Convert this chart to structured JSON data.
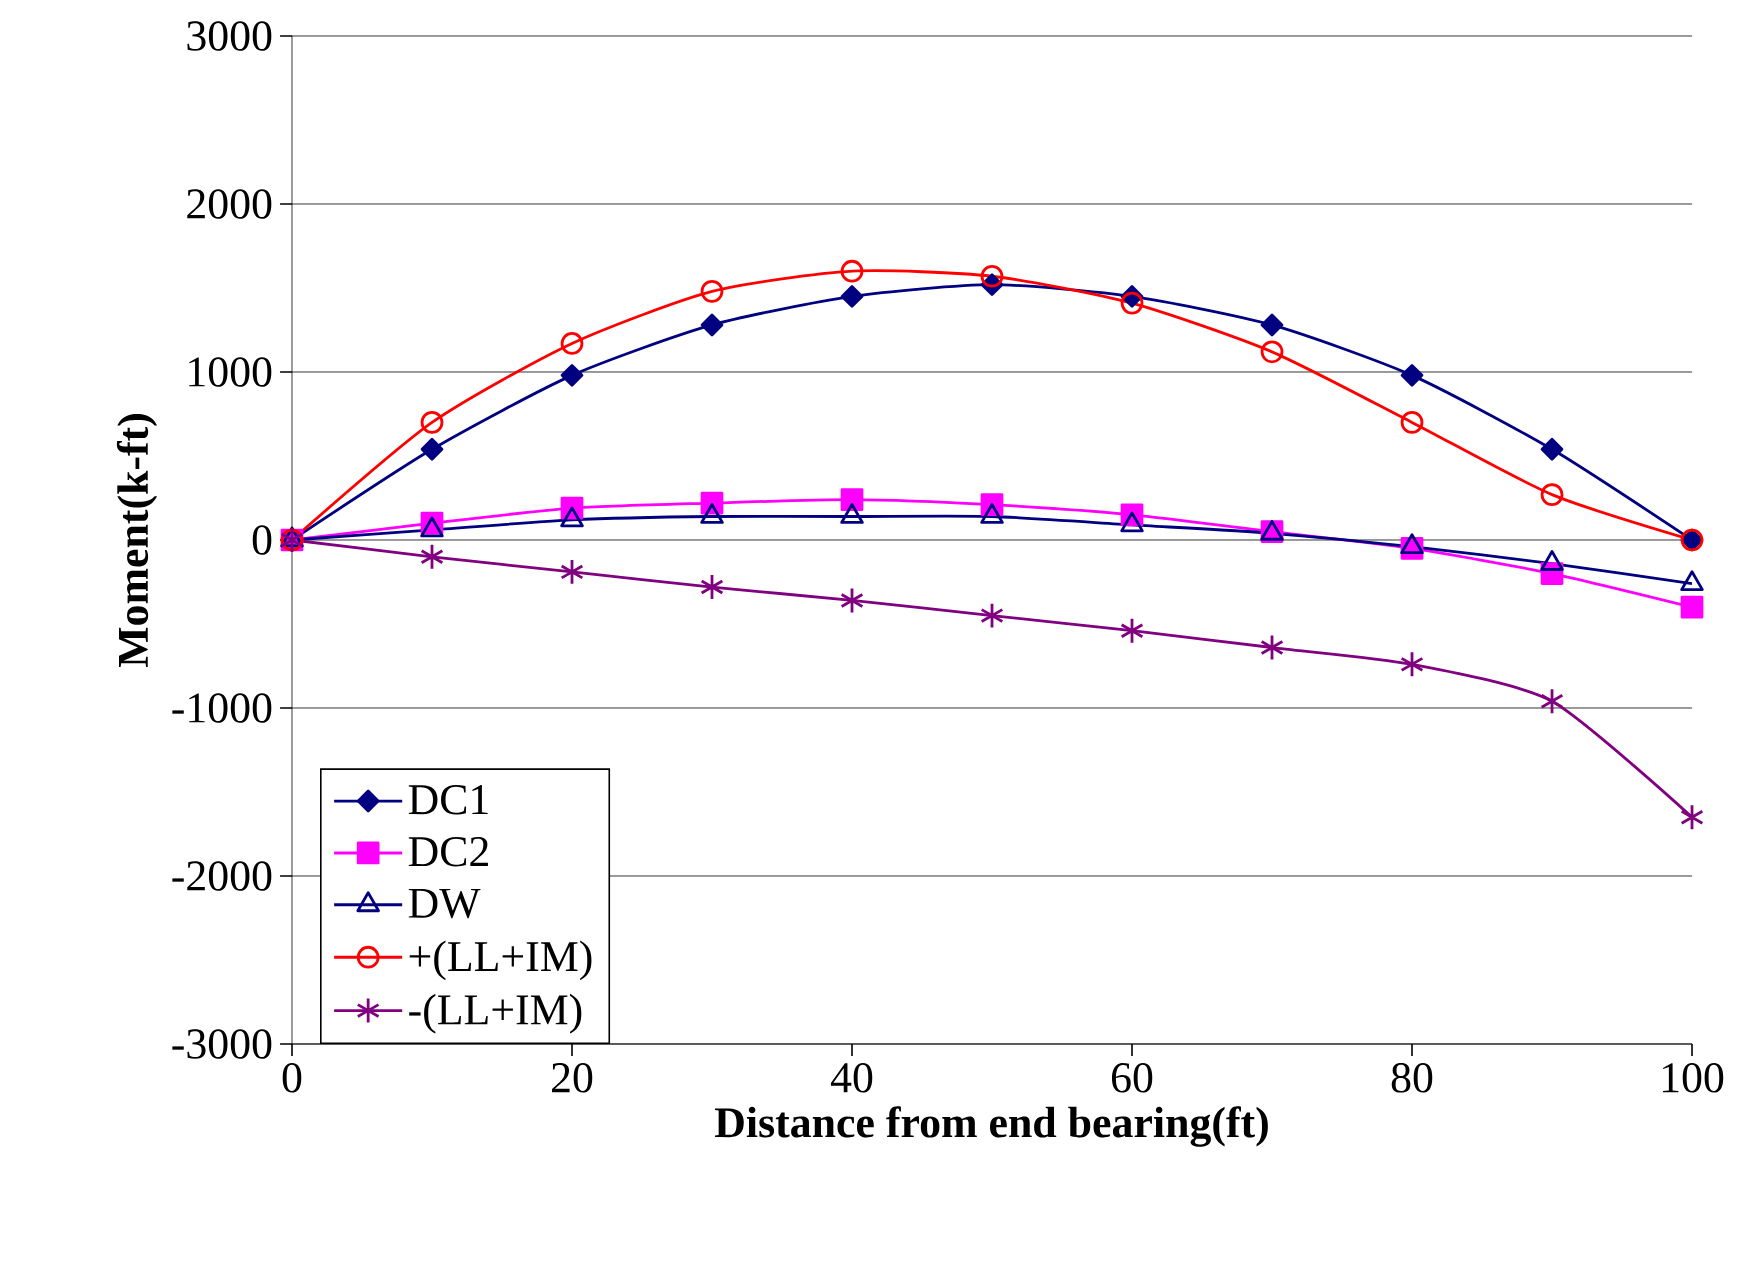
{
  "chart_data": {
    "type": "line",
    "xlabel": "Distance from end bearing(ft)",
    "ylabel": "Moment(k-ft)",
    "x": [
      0,
      10,
      20,
      30,
      40,
      50,
      60,
      70,
      80,
      90,
      100
    ],
    "xlim": [
      0,
      100
    ],
    "xticks": [
      0,
      20,
      40,
      60,
      80,
      100
    ],
    "ylim": [
      -3000,
      3000
    ],
    "yticks": [
      -3000,
      -2000,
      -1000,
      0,
      1000,
      2000,
      3000
    ],
    "grid": "y",
    "legend": "bottom left",
    "series": [
      {
        "name": "DC1",
        "color": "#000080",
        "marker": "diamond",
        "values": [
          0,
          540,
          980,
          1280,
          1450,
          1520,
          1450,
          1280,
          980,
          540,
          0
        ]
      },
      {
        "name": "DC2",
        "color": "#ff00ff",
        "marker": "square",
        "values": [
          0,
          100,
          190,
          220,
          240,
          210,
          150,
          50,
          -50,
          -200,
          -400
        ]
      },
      {
        "name": "DW",
        "color": "#000080",
        "marker": "triangle",
        "values": [
          0,
          60,
          120,
          140,
          140,
          140,
          90,
          40,
          -40,
          -140,
          -260
        ]
      },
      {
        "name": "+(LL+IM)",
        "color": "#ff0000",
        "marker": "circle",
        "values": [
          0,
          700,
          1170,
          1480,
          1600,
          1570,
          1410,
          1120,
          700,
          270,
          0
        ]
      },
      {
        "name": "-(LL+IM)",
        "color": "#800080",
        "marker": "cross",
        "values": [
          0,
          -100,
          -190,
          -280,
          -360,
          -450,
          -540,
          -640,
          -740,
          -960,
          -1650
        ]
      }
    ]
  }
}
